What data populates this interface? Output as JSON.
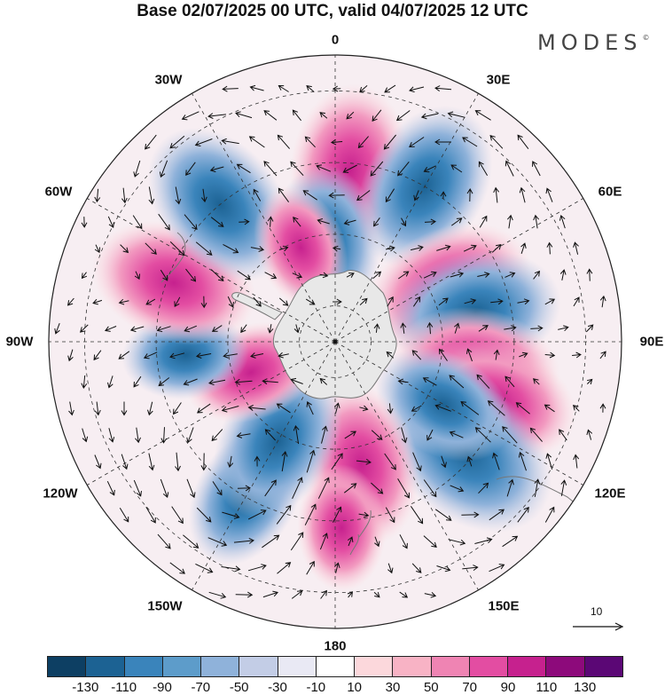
{
  "title": "Base 02/07/2025 00 UTC, valid 04/07/2025 12 UTC",
  "brand": "MODES",
  "brand_mark": "©",
  "longitude_labels": {
    "lon_0": "0",
    "lon_30e": "30E",
    "lon_60e": "60E",
    "lon_90e": "90E",
    "lon_120e": "120E",
    "lon_150e": "150E",
    "lon_180": "180",
    "lon_150w": "150W",
    "lon_120w": "120W",
    "lon_90w": "90W",
    "lon_60w": "60W",
    "lon_30w": "30W"
  },
  "reference_vector": "10",
  "colorbar": {
    "colors": [
      "#0d3f63",
      "#1c6293",
      "#3a84bb",
      "#5d9cca",
      "#8fb2da",
      "#c3cde6",
      "#e9e9f4",
      "#ffffff",
      "#fcd8dc",
      "#f8b3c5",
      "#ef84b3",
      "#e34da2",
      "#c6218e",
      "#8d0a7b",
      "#5b0775"
    ],
    "tick_labels": [
      "-130",
      "-110",
      "-90",
      "-70",
      "-50",
      "-30",
      "-10",
      "10",
      "30",
      "50",
      "70",
      "90",
      "110",
      "130"
    ]
  },
  "anomaly_centers": [
    {
      "lon": 5,
      "lat": -42,
      "value": 100
    },
    {
      "lon": 30,
      "lat": -40,
      "value": -100
    },
    {
      "lon": 65,
      "lat": -55,
      "value": 100
    },
    {
      "lon": 78,
      "lat": -50,
      "value": -100
    },
    {
      "lon": 100,
      "lat": -50,
      "value": 95
    },
    {
      "lon": 110,
      "lat": -42,
      "value": 90
    },
    {
      "lon": 130,
      "lat": -42,
      "value": -120
    },
    {
      "lon": 120,
      "lat": -55,
      "value": -70
    },
    {
      "lon": 168,
      "lat": -55,
      "value": 90
    },
    {
      "lon": 178,
      "lat": -38,
      "value": 50
    },
    {
      "lon": -150,
      "lat": -40,
      "value": -70
    },
    {
      "lon": -150,
      "lat": -58,
      "value": -90
    },
    {
      "lon": -110,
      "lat": -65,
      "value": 60
    },
    {
      "lon": -95,
      "lat": -48,
      "value": -50
    },
    {
      "lon": -70,
      "lat": -42,
      "value": 95
    },
    {
      "lon": -40,
      "lat": -40,
      "value": -100
    },
    {
      "lon": -5,
      "lat": -62,
      "value": -80
    },
    {
      "lon": -20,
      "lat": -62,
      "value": 50
    }
  ]
}
